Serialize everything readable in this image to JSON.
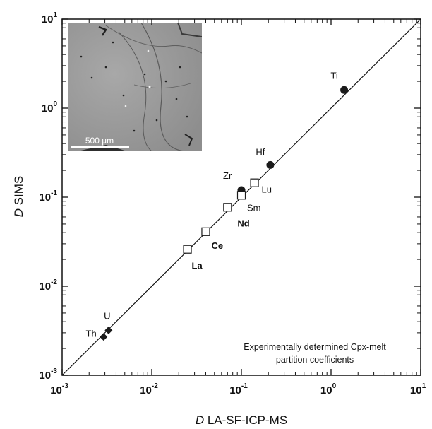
{
  "chart_data": {
    "type": "scatter",
    "xlabel": {
      "italic": "D",
      "rest": " LA-SF-ICP-MS"
    },
    "ylabel": {
      "italic": "D",
      "rest": " SIMS"
    },
    "x_scale": "log",
    "y_scale": "log",
    "xlim": [
      0.001,
      10
    ],
    "ylim": [
      0.001,
      10
    ],
    "x_ticks": [
      {
        "value": 0.001,
        "base": "10",
        "exp": "-3"
      },
      {
        "value": 0.01,
        "base": "10",
        "exp": "-2"
      },
      {
        "value": 0.1,
        "base": "10",
        "exp": "-1"
      },
      {
        "value": 1,
        "base": "10",
        "exp": "0"
      },
      {
        "value": 10,
        "base": "10",
        "exp": "1"
      }
    ],
    "y_ticks": [
      {
        "value": 0.001,
        "base": "10",
        "exp": "-3"
      },
      {
        "value": 0.01,
        "base": "10",
        "exp": "-2"
      },
      {
        "value": 0.1,
        "base": "10",
        "exp": "-1"
      },
      {
        "value": 1,
        "base": "10",
        "exp": "0"
      },
      {
        "value": 10,
        "base": "10",
        "exp": "1"
      }
    ],
    "reference_line": "1:1",
    "annotation": [
      "Experimentally determined Cpx-melt",
      "partition coefficients"
    ],
    "inset_scale_bar": "500 µm",
    "grid": false,
    "series": [
      {
        "marker": "filled-circle",
        "color": "#1a1a1a",
        "points": [
          {
            "label": "Ti",
            "x": 1.4,
            "y": 1.6
          },
          {
            "label": "Hf",
            "x": 0.21,
            "y": 0.23
          },
          {
            "label": "Zr",
            "x": 0.1,
            "y": 0.12
          }
        ]
      },
      {
        "marker": "open-square",
        "color": "#1a1a1a",
        "points": [
          {
            "label": "Lu",
            "x": 0.14,
            "y": 0.145
          },
          {
            "label": "Sm",
            "x": 0.1,
            "y": 0.105
          },
          {
            "label": "Nd",
            "x": 0.07,
            "y": 0.077
          },
          {
            "label": "Ce",
            "x": 0.04,
            "y": 0.041
          },
          {
            "label": "La",
            "x": 0.025,
            "y": 0.026
          }
        ]
      },
      {
        "marker": "filled-diamond",
        "color": "#1a1a1a",
        "points": [
          {
            "label": "U",
            "x": 0.0033,
            "y": 0.0032
          },
          {
            "label": "Th",
            "x": 0.0029,
            "y": 0.0027
          }
        ]
      }
    ]
  }
}
